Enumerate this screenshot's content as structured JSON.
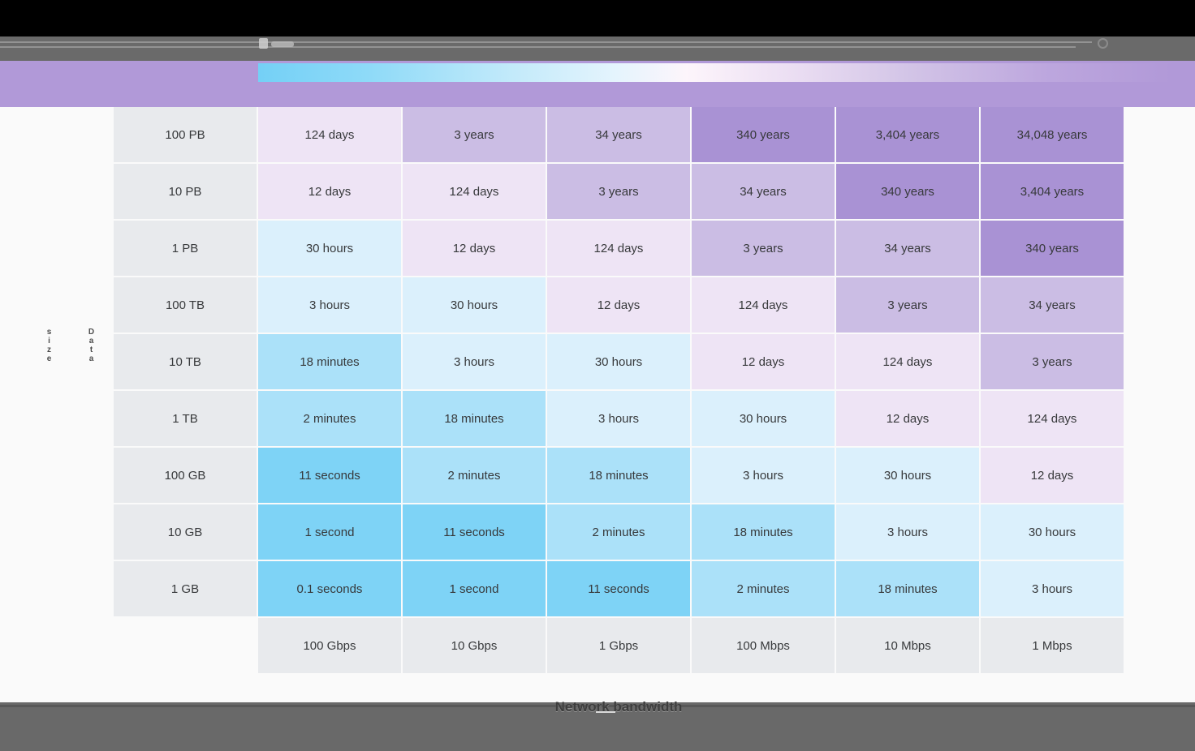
{
  "window": {
    "top_bar_color": "#000000",
    "toolbar_color": "#6a6a6a",
    "bottom_bar_color": "#696969"
  },
  "header": {
    "band_color": "#b199d8",
    "legend_gradient_stops": [
      "#74d0f6 0%",
      "#8edaf8 12%",
      "#c3eafa 28%",
      "#e4f4fd 39%",
      "#fdf5fb 47%",
      "#ecdff3 58%",
      "#d3c5e7 71%",
      "#bda7de 86%",
      "#b199d8 100%"
    ]
  },
  "chart_data": {
    "type": "heatmap",
    "ylabel": "Data size",
    "xlabel": "Network bandwidth",
    "row_labels": [
      "100 PB",
      "10 PB",
      "1 PB",
      "100 TB",
      "10 TB",
      "1 TB",
      "100 GB",
      "10 GB",
      "1 GB"
    ],
    "col_labels": [
      "100 Gbps",
      "10 Gbps",
      "1 Gbps",
      "100 Mbps",
      "10 Mbps",
      "1 Mbps"
    ],
    "cells": [
      [
        "124 days",
        "3 years",
        "34 years",
        "340 years",
        "3,404 years",
        "34,048 years"
      ],
      [
        "12 days",
        "124 days",
        "3 years",
        "34 years",
        "340 years",
        "3,404 years"
      ],
      [
        "30 hours",
        "12 days",
        "124 days",
        "3 years",
        "34 years",
        "340 years"
      ],
      [
        "3 hours",
        "30 hours",
        "12 days",
        "124 days",
        "3 years",
        "34 years"
      ],
      [
        "18 minutes",
        "3 hours",
        "30 hours",
        "12 days",
        "124 days",
        "3 years"
      ],
      [
        "2 minutes",
        "18 minutes",
        "3 hours",
        "30 hours",
        "12 days",
        "124 days"
      ],
      [
        "11 seconds",
        "2 minutes",
        "18 minutes",
        "3 hours",
        "30 hours",
        "12 days"
      ],
      [
        "1 second",
        "11 seconds",
        "2 minutes",
        "18 minutes",
        "3 hours",
        "30 hours"
      ],
      [
        "0.1 seconds",
        "1 second",
        "11 seconds",
        "2 minutes",
        "18 minutes",
        "3 hours"
      ]
    ],
    "levels": [
      [
        "days",
        "years_light",
        "years_light",
        "years_dark",
        "years_dark",
        "years_dark"
      ],
      [
        "days",
        "days",
        "years_light",
        "years_light",
        "years_dark",
        "years_dark"
      ],
      [
        "hours",
        "days",
        "days",
        "years_light",
        "years_light",
        "years_dark"
      ],
      [
        "hours",
        "hours",
        "days",
        "days",
        "years_light",
        "years_light"
      ],
      [
        "minutes",
        "hours",
        "hours",
        "days",
        "days",
        "years_light"
      ],
      [
        "minutes",
        "minutes",
        "hours",
        "hours",
        "days",
        "days"
      ],
      [
        "seconds",
        "minutes",
        "minutes",
        "hours",
        "hours",
        "days"
      ],
      [
        "seconds",
        "seconds",
        "minutes",
        "minutes",
        "hours",
        "hours"
      ],
      [
        "seconds",
        "seconds",
        "seconds",
        "minutes",
        "minutes",
        "hours"
      ]
    ],
    "palette": {
      "seconds": "#7ed3f6",
      "minutes": "#abe1f9",
      "hours": "#dbf0fc",
      "days": "#eee4f5",
      "years_light": "#cbbde4",
      "years_dark": "#a992d4",
      "label_bg": "#e8eaed"
    },
    "text_color": "#37393b"
  }
}
